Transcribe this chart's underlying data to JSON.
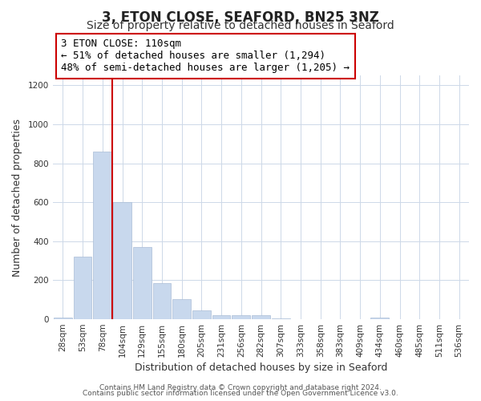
{
  "title": "3, ETON CLOSE, SEAFORD, BN25 3NZ",
  "subtitle": "Size of property relative to detached houses in Seaford",
  "xlabel": "Distribution of detached houses by size in Seaford",
  "ylabel": "Number of detached properties",
  "bar_labels": [
    "28sqm",
    "53sqm",
    "78sqm",
    "104sqm",
    "129sqm",
    "155sqm",
    "180sqm",
    "205sqm",
    "231sqm",
    "256sqm",
    "282sqm",
    "307sqm",
    "333sqm",
    "358sqm",
    "383sqm",
    "409sqm",
    "434sqm",
    "460sqm",
    "485sqm",
    "511sqm",
    "536sqm"
  ],
  "bar_values": [
    10,
    320,
    860,
    600,
    370,
    185,
    105,
    45,
    20,
    20,
    20,
    5,
    0,
    0,
    0,
    0,
    10,
    0,
    0,
    0,
    0
  ],
  "bar_color": "#c8d8ed",
  "bar_edge_color": "#aabdd6",
  "vline_index": 2.5,
  "vline_color": "#cc0000",
  "annotation_line1": "3 ETON CLOSE: 110sqm",
  "annotation_line2": "← 51% of detached houses are smaller (1,294)",
  "annotation_line3": "48% of semi-detached houses are larger (1,205) →",
  "annotation_box_color": "#ffffff",
  "annotation_box_edge": "#cc0000",
  "ylim": [
    0,
    1250
  ],
  "yticks": [
    0,
    200,
    400,
    600,
    800,
    1000,
    1200
  ],
  "footer1": "Contains HM Land Registry data © Crown copyright and database right 2024.",
  "footer2": "Contains public sector information licensed under the Open Government Licence v3.0.",
  "background_color": "#ffffff",
  "grid_color": "#cdd8e8",
  "title_fontsize": 12,
  "subtitle_fontsize": 10,
  "axis_label_fontsize": 9,
  "tick_fontsize": 7.5,
  "annotation_fontsize": 9,
  "footer_fontsize": 6.5
}
